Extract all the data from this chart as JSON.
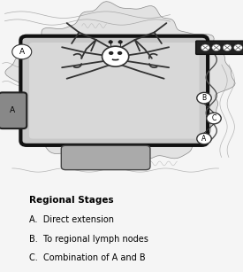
{
  "bg_color": "#f5f5f5",
  "title": "Regional Stages",
  "legend_lines": [
    "A.  Direct extension",
    "B.  To regional lymph nodes",
    "C.  Combination of A and B"
  ],
  "title_fontsize": 7.5,
  "legend_fontsize": 7.0,
  "fig_width": 2.75,
  "fig_height": 3.07,
  "dpi": 100
}
